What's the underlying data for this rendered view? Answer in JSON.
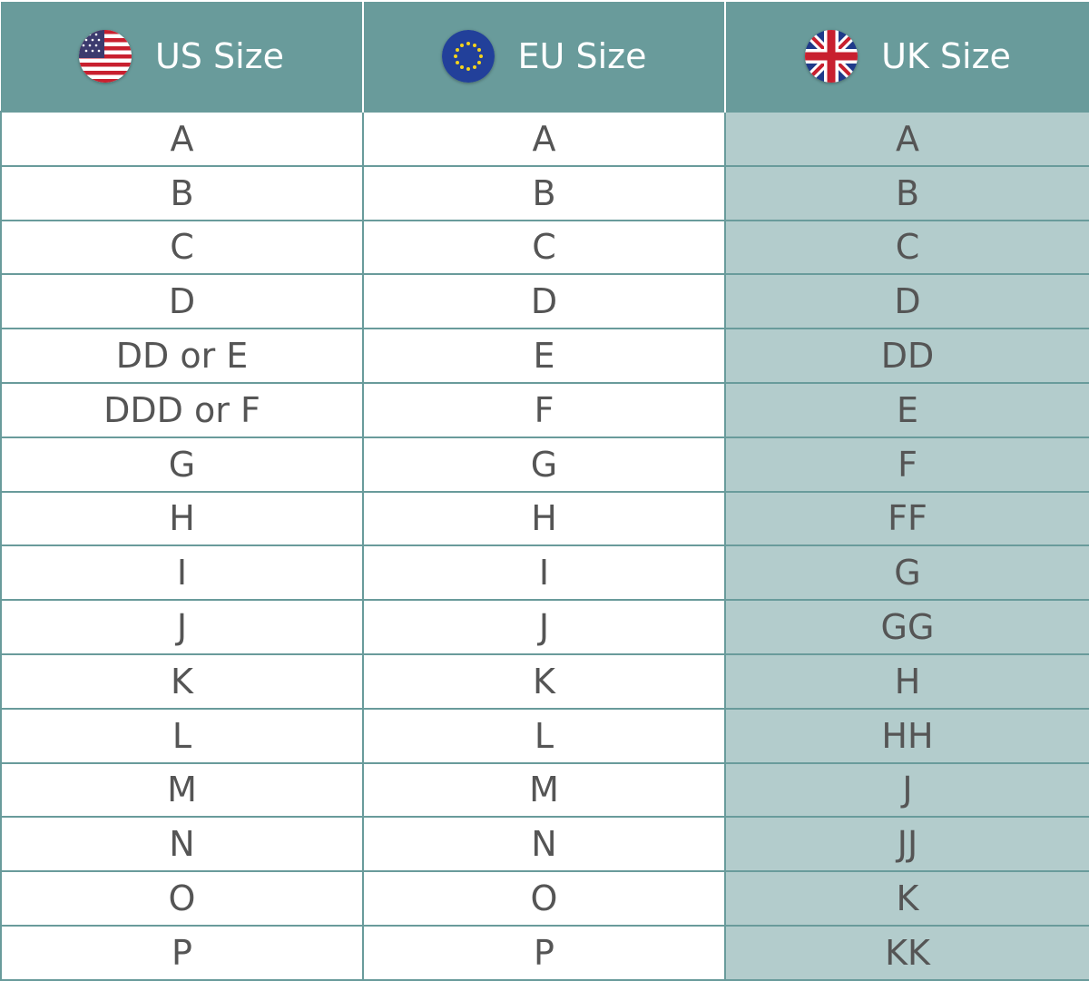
{
  "colors": {
    "header": "#699b9b",
    "uk_column": "#b3cccc",
    "text": "#555555"
  },
  "headers": [
    {
      "label": "US Size",
      "icon": "us-flag-icon"
    },
    {
      "label": "EU Size",
      "icon": "eu-flag-icon"
    },
    {
      "label": "UK Size",
      "icon": "uk-flag-icon"
    }
  ],
  "rows": [
    [
      "A",
      "A",
      "A"
    ],
    [
      "B",
      "B",
      "B"
    ],
    [
      "C",
      "C",
      "C"
    ],
    [
      "D",
      "D",
      "D"
    ],
    [
      "DD or E",
      "E",
      "DD"
    ],
    [
      "DDD or F",
      "F",
      "E"
    ],
    [
      "G",
      "G",
      "F"
    ],
    [
      "H",
      "H",
      "FF"
    ],
    [
      "I",
      "I",
      "G"
    ],
    [
      "J",
      "J",
      "GG"
    ],
    [
      "K",
      "K",
      "H"
    ],
    [
      "L",
      "L",
      "HH"
    ],
    [
      "M",
      "M",
      "J"
    ],
    [
      "N",
      "N",
      "JJ"
    ],
    [
      "O",
      "O",
      "K"
    ],
    [
      "P",
      "P",
      "KK"
    ]
  ]
}
